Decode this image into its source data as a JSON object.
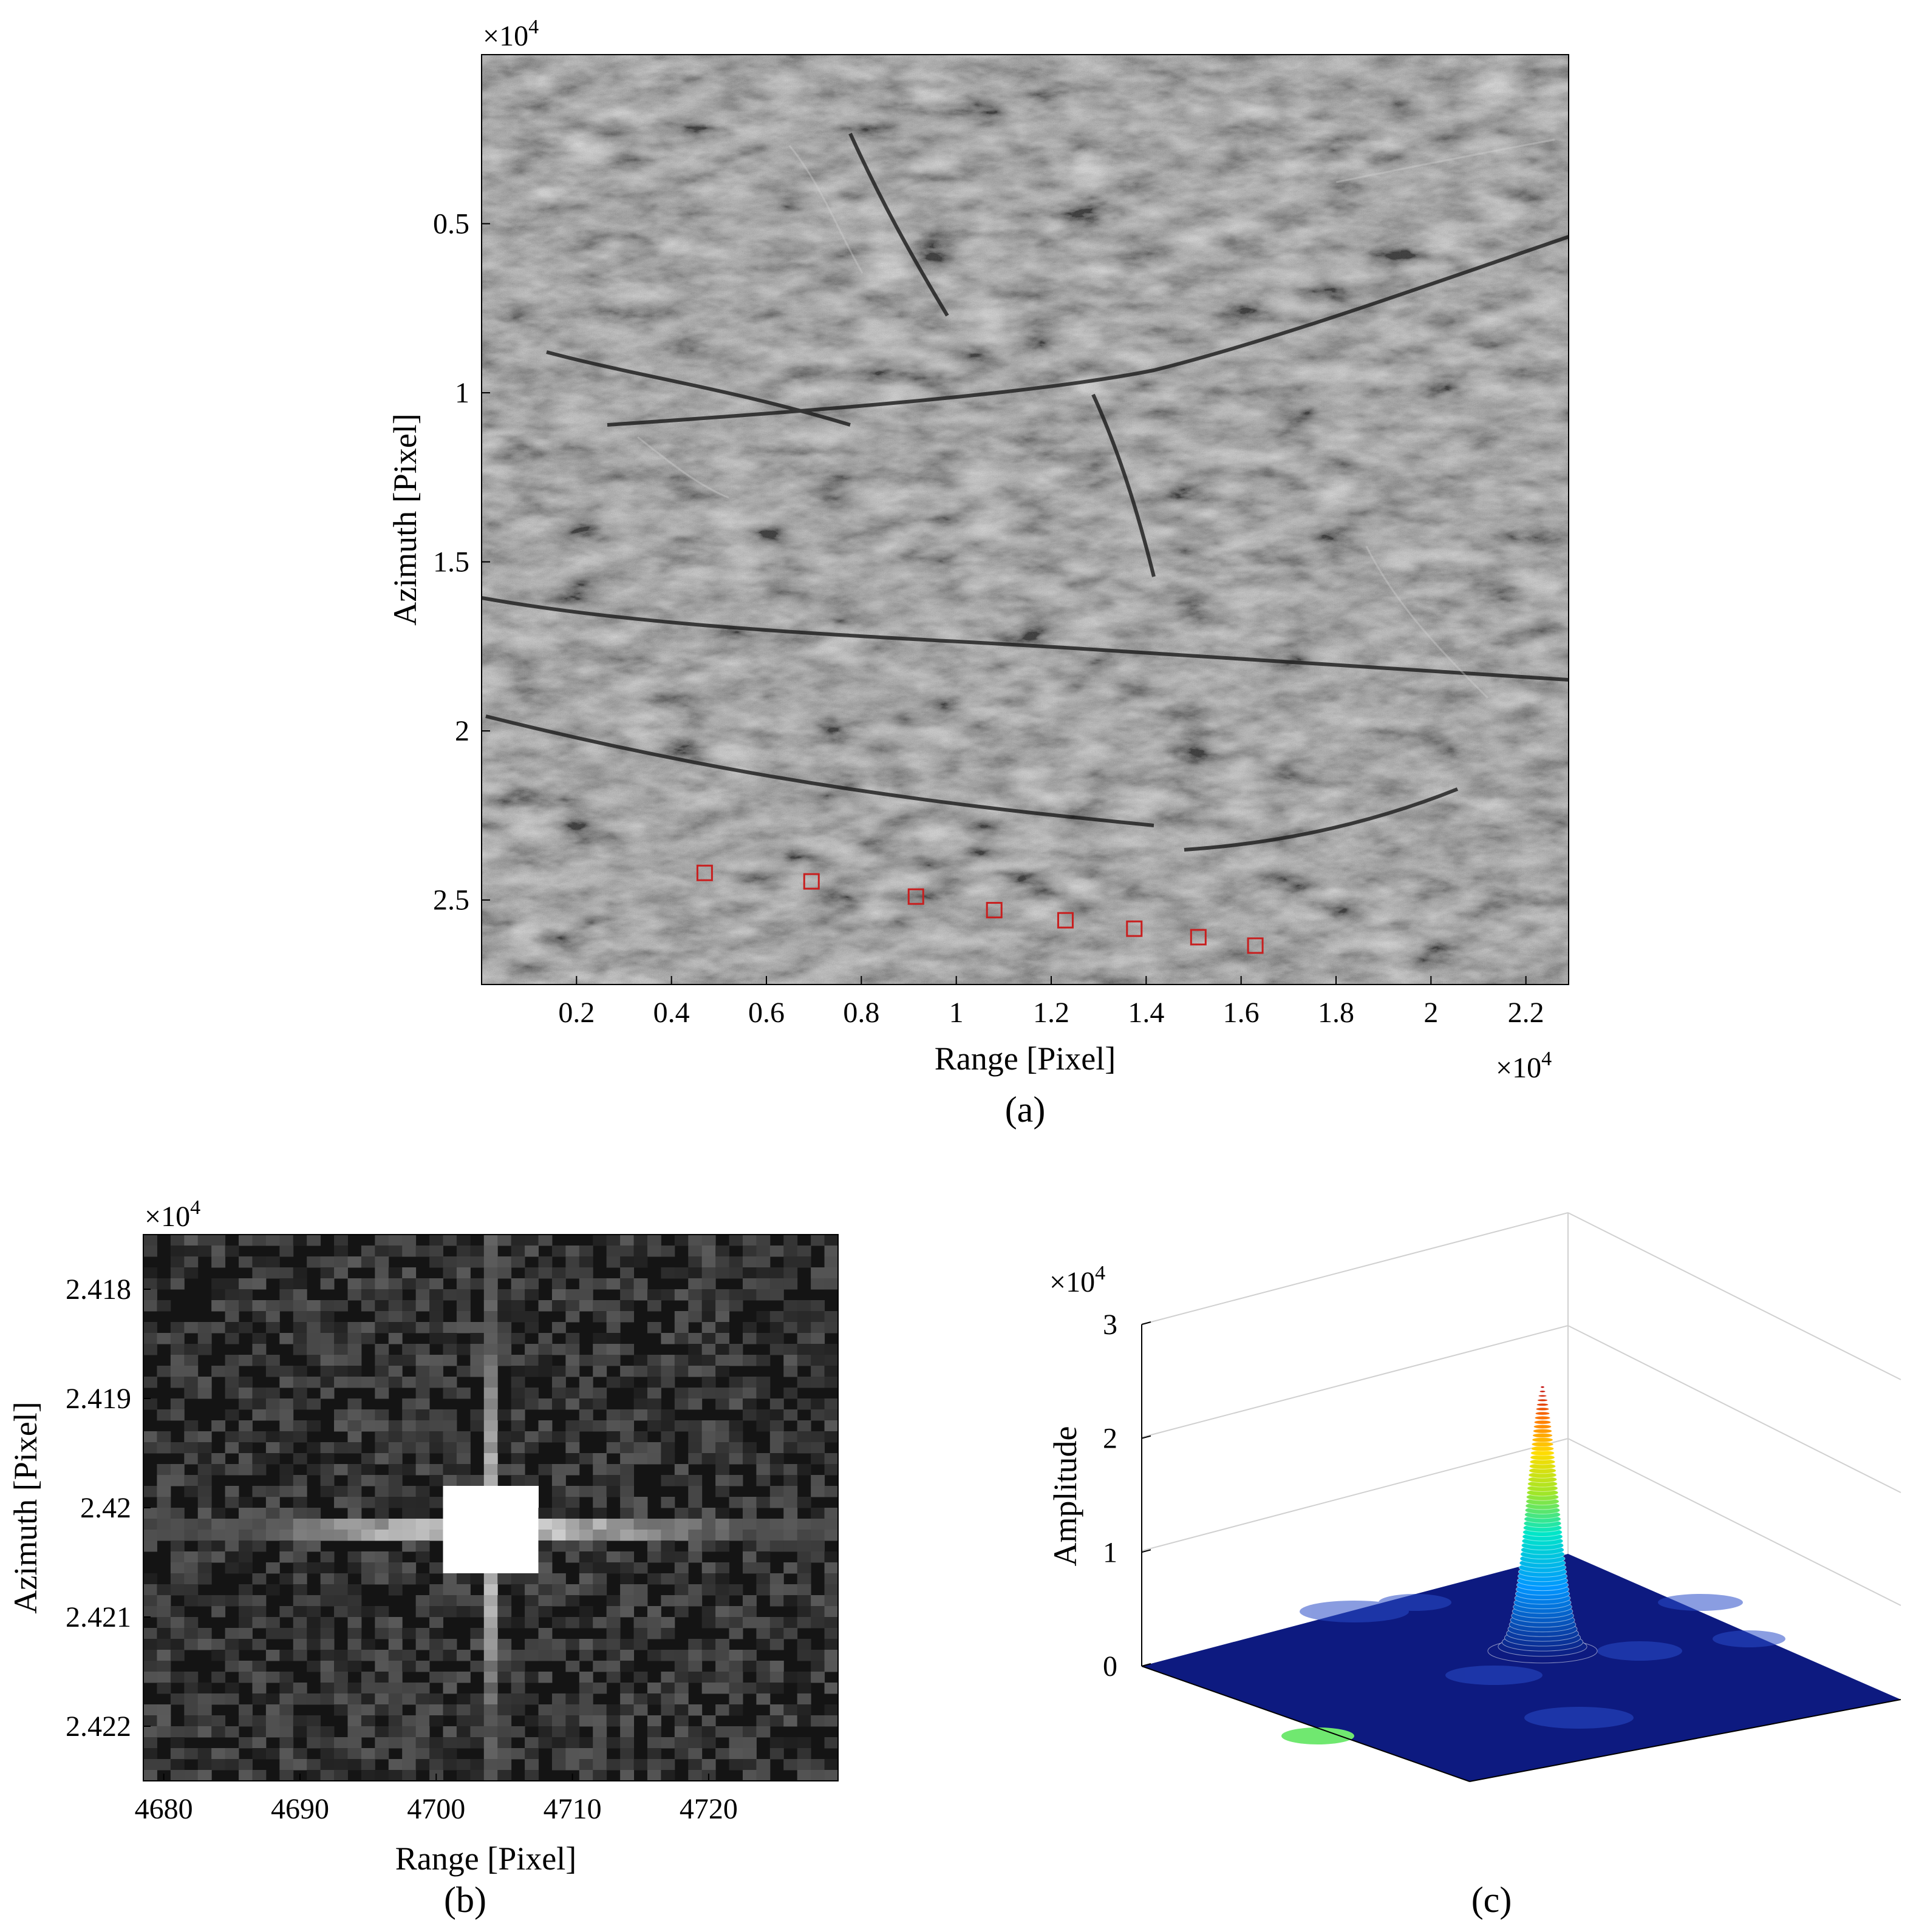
{
  "figure": {
    "panel_a": {
      "caption": "(a)",
      "xlabel": "Range [Pixel]",
      "ylabel": "Azimuth [Pixel]",
      "x_exponent_base": "×10",
      "x_exponent_power": "4",
      "y_exponent_base": "×10",
      "y_exponent_power": "4"
    },
    "panel_b": {
      "caption": "(b)",
      "xlabel": "Range [Pixel]",
      "ylabel": "Azimuth [Pixel]",
      "y_exponent_base": "×10",
      "y_exponent_power": "4"
    },
    "panel_c": {
      "caption": "(c)",
      "zlabel": "Amplitude",
      "z_exponent_base": "×10",
      "z_exponent_power": "4"
    }
  },
  "colors": {
    "image_dark": "#3a3a3a",
    "marker_red": "#c81e1e",
    "surface_base": "#0d1a80",
    "peak_top": "#c00000",
    "grid_gray": "#cfcfcf"
  },
  "chart_data": [
    {
      "type": "heatmap",
      "panel": "a",
      "description_kind": "SAR amplitude image",
      "xlim": [
        0,
        22900
      ],
      "ylim": [
        27500,
        0
      ],
      "x_ticks": [
        2000,
        4000,
        6000,
        8000,
        10000,
        12000,
        14000,
        16000,
        18000,
        20000,
        22000
      ],
      "x_tick_labels": [
        "0.2",
        "0.4",
        "0.6",
        "0.8",
        "1",
        "1.2",
        "1.4",
        "1.6",
        "1.8",
        "2",
        "2.2"
      ],
      "y_ticks": [
        5000,
        10000,
        15000,
        20000,
        25000
      ],
      "y_tick_labels": [
        "0.5",
        "1",
        "1.5",
        "2",
        "2.5"
      ],
      "markers": [
        {
          "range": 4700,
          "azimuth": 24200
        },
        {
          "range": 6950,
          "azimuth": 24450
        },
        {
          "range": 9150,
          "azimuth": 24900
        },
        {
          "range": 10800,
          "azimuth": 25300
        },
        {
          "range": 12300,
          "azimuth": 25600
        },
        {
          "range": 13750,
          "azimuth": 25850
        },
        {
          "range": 15100,
          "azimuth": 26100
        },
        {
          "range": 16300,
          "azimuth": 26350
        }
      ]
    },
    {
      "type": "heatmap",
      "panel": "b",
      "xlim": [
        4678.5,
        4729.5
      ],
      "ylim": [
        24175,
        24225
      ],
      "x_ticks": [
        4680,
        4690,
        4700,
        4710,
        4720
      ],
      "x_tick_labels": [
        "4680",
        "4690",
        "4700",
        "4710",
        "4720"
      ],
      "y_ticks": [
        24180,
        24190,
        24200,
        24210,
        24220
      ],
      "y_tick_labels": [
        "2.418",
        "2.419",
        "2.42",
        "2.421",
        "2.422"
      ],
      "peak": {
        "range": 4704,
        "azimuth": 24202
      }
    },
    {
      "type": "surface",
      "panel": "c",
      "zlim": [
        0,
        30000
      ],
      "z_ticks": [
        0,
        10000,
        20000,
        30000
      ],
      "z_tick_labels": [
        "0",
        "1",
        "2",
        "3"
      ],
      "peak_amplitude": 24500
    }
  ]
}
